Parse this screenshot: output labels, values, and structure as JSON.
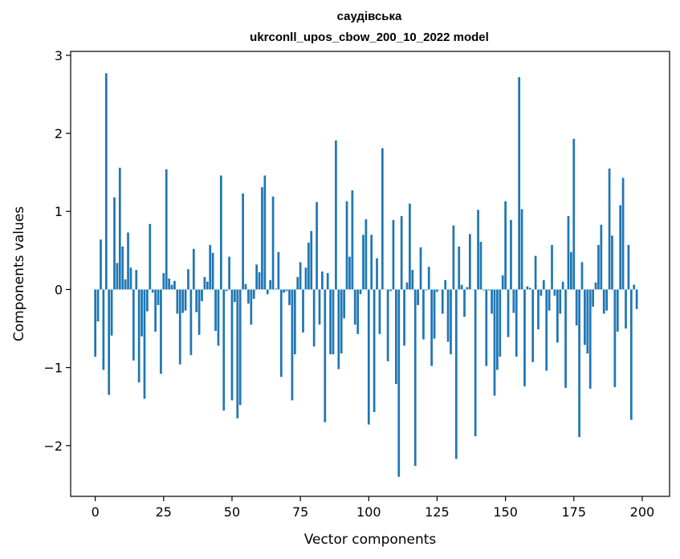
{
  "chart_data": {
    "type": "bar",
    "title_lines": [
      "саудівська",
      "ukrconll_upos_cbow_200_10_2022 model"
    ],
    "xlabel": "Vector components",
    "ylabel": "Components values",
    "xlim": [
      -9,
      210
    ],
    "ylim": [
      -2.65,
      3.05
    ],
    "xticks": [
      {
        "value": 0,
        "label": "0"
      },
      {
        "value": 25,
        "label": "25"
      },
      {
        "value": 50,
        "label": "50"
      },
      {
        "value": 75,
        "label": "75"
      },
      {
        "value": 100,
        "label": "100"
      },
      {
        "value": 125,
        "label": "125"
      },
      {
        "value": 150,
        "label": "150"
      },
      {
        "value": 175,
        "label": "175"
      },
      {
        "value": 200,
        "label": "200"
      }
    ],
    "yticks": [
      {
        "value": -2,
        "label": "−2"
      },
      {
        "value": -1,
        "label": "−1"
      },
      {
        "value": 0,
        "label": "0"
      },
      {
        "value": 1,
        "label": "1"
      },
      {
        "value": 2,
        "label": "2"
      },
      {
        "value": 3,
        "label": "3"
      }
    ],
    "bar_color": "#1f77b4",
    "values": [
      -0.86,
      -0.41,
      0.64,
      -1.03,
      2.77,
      -1.35,
      -0.59,
      1.18,
      0.34,
      1.56,
      0.55,
      0.13,
      0.73,
      0.28,
      -0.91,
      0.25,
      -1.19,
      -0.6,
      -1.4,
      -0.28,
      0.84,
      -0.04,
      -0.54,
      -0.2,
      -1.08,
      0.21,
      1.54,
      0.14,
      0.06,
      0.11,
      -0.31,
      -0.96,
      -0.3,
      -0.27,
      0.26,
      -0.84,
      0.52,
      -0.29,
      -0.58,
      -0.15,
      0.16,
      0.1,
      0.57,
      0.47,
      -0.53,
      -0.72,
      1.46,
      -1.55,
      -0.02,
      0.42,
      -1.42,
      -0.16,
      -1.65,
      -1.48,
      1.23,
      0.07,
      -0.18,
      -0.45,
      -0.12,
      0.32,
      0.22,
      1.31,
      1.46,
      -0.06,
      0.12,
      1.19,
      0.01,
      0.48,
      -1.12,
      -0.04,
      -0.02,
      -0.2,
      -1.42,
      -0.83,
      0.16,
      0.35,
      -0.55,
      0.28,
      0.6,
      0.75,
      -0.73,
      1.12,
      -0.45,
      0.23,
      -1.7,
      0.21,
      -0.83,
      -0.83,
      1.91,
      -1.02,
      -0.82,
      -0.37,
      1.13,
      0.42,
      1.27,
      -0.45,
      -0.57,
      -0.06,
      0.7,
      0.9,
      -1.73,
      0.7,
      -1.57,
      0.4,
      -0.57,
      1.81,
      0.0,
      -0.92,
      -0.02,
      0.89,
      -1.21,
      -2.4,
      0.94,
      -0.72,
      0.09,
      1.1,
      0.25,
      -2.26,
      -0.2,
      0.54,
      -0.64,
      -0.01,
      0.29,
      -0.98,
      -0.63,
      -0.03,
      0.0,
      -0.31,
      0.12,
      -0.67,
      -0.83,
      0.82,
      -2.17,
      0.55,
      0.06,
      -0.35,
      0.03,
      0.71,
      0.0,
      -1.88,
      1.02,
      0.61,
      -0.01,
      -0.98,
      -0.01,
      -0.31,
      -1.36,
      -1.03,
      -0.86,
      0.18,
      1.13,
      -0.61,
      0.89,
      -0.3,
      -0.86,
      2.72,
      1.03,
      -1.24,
      0.04,
      0.02,
      -0.93,
      0.43,
      -0.51,
      -0.08,
      0.12,
      -1.04,
      -0.27,
      0.57,
      -0.08,
      -0.68,
      -0.31,
      0.1,
      -1.26,
      0.94,
      0.48,
      1.93,
      -0.46,
      -1.89,
      0.35,
      -0.71,
      -0.82,
      -1.27,
      -0.22,
      0.09,
      0.57,
      0.83,
      -0.31,
      -0.27,
      1.55,
      0.69,
      -1.25,
      -0.54,
      1.08,
      1.43,
      -0.5,
      0.57,
      -1.67,
      0.06,
      -0.25
    ]
  }
}
